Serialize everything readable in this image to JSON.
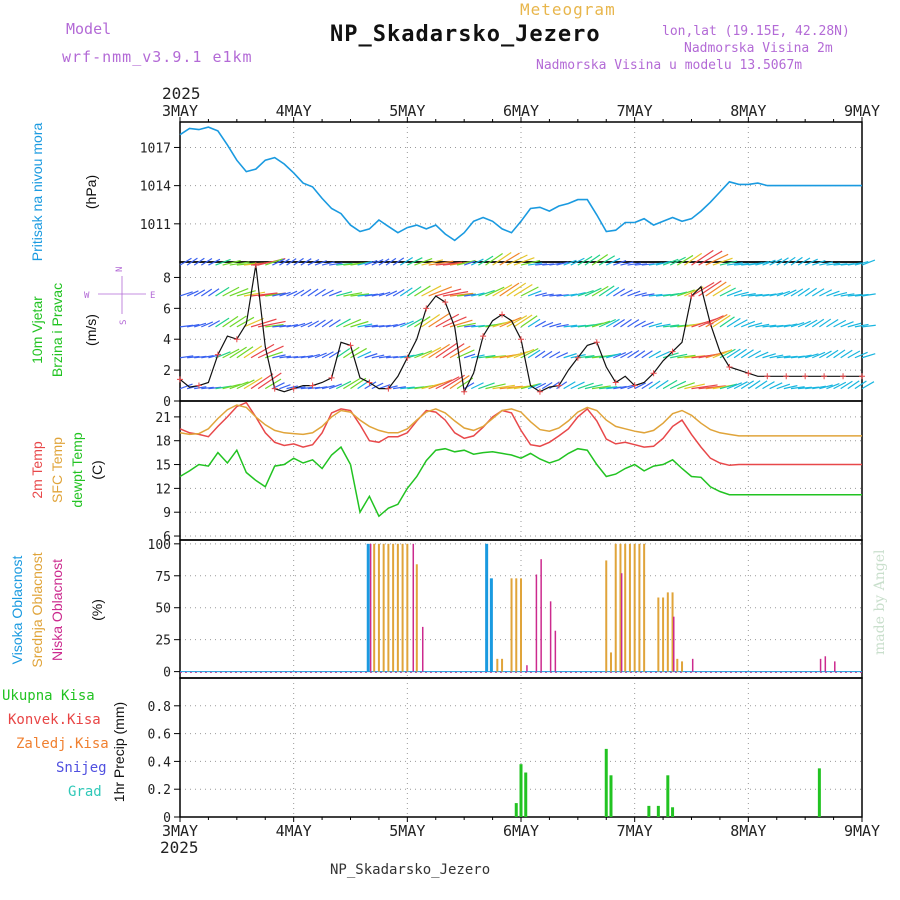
{
  "header": {
    "model_label": "Model",
    "model_name": "wrf-nmm_v3.9.1 e1km",
    "meteogram_label": "Meteogram",
    "station": "NP_Skadarsko_Jezero",
    "lonlat": "lon,lat (19.15E, 42.28N)",
    "elevation": "Nadmorska Visina 2m",
    "model_elevation": "Nadmorska Visina u modelu 13.5067m",
    "year": "2025",
    "footer_station": "NP_Skadarsko_Jezero",
    "credit": "made by Angel"
  },
  "colors": {
    "pressure": "#1a9ae0",
    "temp2m": "#e8484a",
    "sfc_temp": "#e0a43a",
    "dewpoint": "#22c322",
    "cloud_high": "#1a9ae0",
    "cloud_mid": "#e0a43a",
    "cloud_low": "#cc2a8e",
    "precip_total": "#22c322",
    "precip_conv": "#e84545",
    "precip_frozen": "#f08030",
    "snow": "#5050e0",
    "grad": "#30c8b8",
    "axis_label_purple": "#b36ad6"
  },
  "chart_data": [
    {
      "type": "line",
      "panel": "pressure",
      "ylabel_lines": [
        "Pritisak na nivou mora"
      ],
      "unit": "(hPa)",
      "x_ticks": [
        "3MAY",
        "4MAY",
        "5MAY",
        "6MAY",
        "7MAY",
        "8MAY",
        "9MAY"
      ],
      "ylim": [
        1008.0,
        1019.0
      ],
      "yticks": [
        1011,
        1014,
        1017
      ],
      "grid": true,
      "series": [
        {
          "key": "pressure",
          "x_hours": [
            0,
            2,
            4,
            6,
            8,
            10,
            12,
            14,
            16,
            18,
            20,
            22,
            24,
            26,
            28,
            30,
            32,
            34,
            36,
            38,
            40,
            42,
            44,
            46,
            48,
            50,
            52,
            54,
            56,
            58,
            60,
            62,
            64,
            66,
            68,
            70,
            72,
            74,
            76,
            78,
            80,
            82,
            84,
            86,
            88,
            90,
            92,
            94,
            96,
            98,
            100,
            102,
            104,
            106,
            108,
            110,
            112,
            114,
            116,
            118,
            120,
            122,
            124,
            126,
            128,
            130,
            132,
            134,
            136,
            138,
            140,
            142,
            144
          ],
          "values": [
            1018.0,
            1018.5,
            1018.4,
            1018.6,
            1018.3,
            1017.2,
            1016.0,
            1015.1,
            1015.3,
            1016.0,
            1016.2,
            1015.7,
            1015.0,
            1014.2,
            1013.9,
            1013.0,
            1012.2,
            1011.8,
            1010.9,
            1010.4,
            1010.6,
            1011.3,
            1010.8,
            1010.3,
            1010.7,
            1010.9,
            1010.6,
            1010.9,
            1010.2,
            1009.7,
            1010.3,
            1011.2,
            1011.5,
            1011.2,
            1010.6,
            1010.3,
            1011.2,
            1012.2,
            1012.3,
            1012.0,
            1012.4,
            1012.6,
            1012.9,
            1012.9,
            1011.7,
            1010.4,
            1010.5,
            1011.1,
            1011.1,
            1011.4,
            1010.9,
            1011.2,
            1011.5,
            1011.2,
            1011.4,
            1012.0,
            1012.7,
            1013.5,
            1014.3,
            1014.1,
            1014.1,
            1014.2,
            1014.0,
            1014.0,
            1014.0,
            1014.0,
            1014.0,
            1014.0,
            1014.0,
            1014.0,
            1014.0,
            1014.0,
            1014.0
          ]
        }
      ]
    },
    {
      "type": "line",
      "panel": "wind",
      "ylabel_lines": [
        "10m Vjetar",
        "Brzina i Pravac"
      ],
      "unit": "(m/s)",
      "compass": {
        "north": "N",
        "south": "S",
        "west": "W",
        "east": "E"
      },
      "ylim": [
        0,
        9
      ],
      "yticks": [
        0,
        2,
        4,
        6,
        8
      ],
      "grid": true,
      "barb_levels": [
        0.8,
        2.8,
        4.8,
        6.8,
        8.8
      ],
      "series": [
        {
          "key": "wind_speed",
          "x_hours": [
            0,
            2,
            4,
            6,
            8,
            10,
            12,
            14,
            16,
            18,
            20,
            22,
            24,
            26,
            28,
            30,
            32,
            34,
            36,
            38,
            40,
            42,
            44,
            46,
            48,
            50,
            52,
            54,
            56,
            58,
            60,
            62,
            64,
            66,
            68,
            70,
            72,
            74,
            76,
            78,
            80,
            82,
            84,
            86,
            88,
            90,
            92,
            94,
            96,
            98,
            100,
            102,
            104,
            106,
            108,
            110,
            112,
            114,
            116,
            118,
            120,
            122,
            124,
            126,
            128,
            130,
            132,
            134,
            136,
            138,
            140,
            142,
            144
          ],
          "values": [
            1.4,
            0.9,
            1.0,
            1.2,
            3.0,
            4.2,
            4.0,
            5.0,
            8.8,
            3.5,
            0.8,
            0.6,
            0.8,
            1.0,
            1.0,
            1.2,
            1.5,
            3.8,
            3.6,
            1.5,
            1.2,
            0.8,
            0.8,
            1.6,
            2.8,
            4.0,
            6.0,
            6.8,
            6.4,
            4.8,
            0.6,
            1.8,
            4.2,
            5.2,
            5.6,
            5.2,
            4.0,
            1.0,
            0.6,
            0.9,
            1.0,
            2.0,
            2.8,
            3.6,
            3.8,
            2.2,
            1.2,
            1.6,
            1.0,
            1.2,
            1.8,
            2.6,
            3.2,
            3.8,
            6.8,
            7.4,
            5.0,
            3.2,
            2.2,
            2.0,
            1.8,
            1.6,
            1.6,
            1.6,
            1.6,
            1.6,
            1.6,
            1.6,
            1.6,
            1.6,
            1.6,
            1.6,
            1.6
          ]
        }
      ]
    },
    {
      "type": "line",
      "panel": "temperature",
      "ylabel_lines": [
        "2m Temp",
        "SFC Temp",
        "dewpt Temp"
      ],
      "unit": "(C)",
      "ylim": [
        5.5,
        23.0
      ],
      "yticks": [
        6,
        9,
        12,
        15,
        18,
        21
      ],
      "grid": true,
      "series": [
        {
          "key": "temp2m",
          "name": "2m Temp",
          "x_hours": [
            0,
            2,
            4,
            6,
            8,
            10,
            12,
            14,
            16,
            18,
            20,
            22,
            24,
            26,
            28,
            30,
            32,
            34,
            36,
            38,
            40,
            42,
            44,
            46,
            48,
            50,
            52,
            54,
            56,
            58,
            60,
            62,
            64,
            66,
            68,
            70,
            72,
            74,
            76,
            78,
            80,
            82,
            84,
            86,
            88,
            90,
            92,
            94,
            96,
            98,
            100,
            102,
            104,
            106,
            108,
            110,
            112,
            114,
            116,
            118,
            120,
            122,
            124,
            126,
            128,
            130,
            132,
            134,
            136,
            138,
            140,
            142,
            144
          ],
          "values": [
            19.5,
            19.0,
            18.8,
            18.5,
            19.8,
            21.0,
            22.3,
            22.8,
            21.0,
            19.0,
            17.8,
            17.4,
            17.6,
            17.2,
            17.5,
            19.0,
            21.5,
            22.0,
            21.8,
            20.0,
            18.0,
            17.8,
            18.5,
            18.5,
            19.0,
            20.5,
            21.8,
            21.6,
            20.6,
            19.0,
            18.3,
            18.6,
            19.7,
            21.0,
            21.8,
            21.5,
            19.3,
            17.5,
            17.3,
            17.8,
            18.6,
            19.5,
            21.0,
            22.0,
            20.5,
            18.2,
            17.6,
            17.8,
            17.5,
            17.2,
            17.3,
            18.3,
            19.8,
            20.6,
            18.8,
            17.2,
            15.8,
            15.2,
            14.9,
            15.0,
            15.0,
            15.0,
            15.0,
            15.0,
            15.0,
            15.0,
            15.0,
            15.0,
            15.0,
            15.0,
            15.0,
            15.0,
            15.0
          ]
        },
        {
          "key": "sfc_temp",
          "name": "SFC Temp",
          "x_hours": [
            0,
            2,
            4,
            6,
            8,
            10,
            12,
            14,
            16,
            18,
            20,
            22,
            24,
            26,
            28,
            30,
            32,
            34,
            36,
            38,
            40,
            42,
            44,
            46,
            48,
            50,
            52,
            54,
            56,
            58,
            60,
            62,
            64,
            66,
            68,
            70,
            72,
            74,
            76,
            78,
            80,
            82,
            84,
            86,
            88,
            90,
            92,
            94,
            96,
            98,
            100,
            102,
            104,
            106,
            108,
            110,
            112,
            114,
            116,
            118,
            120,
            122,
            124,
            126,
            128,
            130,
            132,
            134,
            136,
            138,
            140,
            142,
            144
          ],
          "values": [
            19.0,
            18.8,
            18.9,
            19.5,
            20.8,
            21.9,
            22.5,
            22.2,
            21.0,
            20.0,
            19.3,
            19.0,
            18.9,
            18.8,
            19.0,
            19.8,
            21.0,
            21.8,
            21.6,
            20.6,
            19.8,
            19.3,
            19.0,
            19.0,
            19.5,
            20.6,
            21.6,
            22.0,
            21.5,
            20.5,
            19.6,
            19.3,
            19.8,
            20.8,
            21.8,
            22.0,
            21.6,
            20.4,
            19.4,
            19.2,
            19.6,
            20.5,
            21.6,
            22.2,
            21.8,
            20.6,
            19.8,
            19.5,
            19.2,
            19.0,
            19.3,
            20.2,
            21.4,
            21.8,
            21.2,
            20.2,
            19.4,
            19.0,
            18.8,
            18.6,
            18.6,
            18.6,
            18.6,
            18.6,
            18.6,
            18.6,
            18.6,
            18.6,
            18.6,
            18.6,
            18.6,
            18.6,
            18.6
          ]
        },
        {
          "key": "dewpoint",
          "name": "dewpt Temp",
          "x_hours": [
            0,
            2,
            4,
            6,
            8,
            10,
            12,
            14,
            16,
            18,
            20,
            22,
            24,
            26,
            28,
            30,
            32,
            34,
            36,
            38,
            40,
            42,
            44,
            46,
            48,
            50,
            52,
            54,
            56,
            58,
            60,
            62,
            64,
            66,
            68,
            70,
            72,
            74,
            76,
            78,
            80,
            82,
            84,
            86,
            88,
            90,
            92,
            94,
            96,
            98,
            100,
            102,
            104,
            106,
            108,
            110,
            112,
            114,
            116,
            118,
            120,
            122,
            124,
            126,
            128,
            130,
            132,
            134,
            136,
            138,
            140,
            142,
            144
          ],
          "values": [
            13.5,
            14.2,
            15.0,
            14.8,
            16.5,
            15.2,
            16.8,
            14.0,
            13.0,
            12.2,
            14.8,
            15.0,
            15.8,
            15.2,
            15.6,
            14.5,
            16.2,
            17.2,
            15.0,
            9.0,
            11.0,
            8.5,
            9.5,
            10.0,
            12.0,
            13.5,
            15.5,
            16.8,
            17.0,
            16.6,
            16.8,
            16.3,
            16.5,
            16.6,
            16.4,
            16.2,
            15.8,
            16.4,
            15.7,
            15.2,
            15.6,
            16.4,
            17.0,
            16.8,
            15.0,
            13.5,
            13.8,
            14.5,
            15.0,
            14.2,
            14.8,
            15.0,
            15.6,
            14.5,
            13.5,
            13.4,
            12.2,
            11.6,
            11.2,
            11.2,
            11.2,
            11.2,
            11.2,
            11.2,
            11.2,
            11.2,
            11.2,
            11.2,
            11.2,
            11.2,
            11.2,
            11.2,
            11.2
          ]
        }
      ]
    },
    {
      "type": "bar",
      "panel": "cloud",
      "ylabel_lines": [
        "Visoka Oblacnost",
        "Srednja Oblacnost",
        "Niska Oblacnost"
      ],
      "unit": "(%)",
      "ylim": [
        -5,
        103
      ],
      "yticks": [
        0,
        25,
        50,
        75,
        100
      ],
      "grid": true,
      "series": [
        {
          "key": "cloud_high",
          "name": "Visoka Oblacnost",
          "x_hours": [
            40,
            65,
            66
          ],
          "values": [
            100,
            100,
            73
          ]
        },
        {
          "key": "cloud_mid",
          "name": "Srednja Oblacnost",
          "x_hours": [
            41,
            42,
            43,
            44,
            45,
            46,
            47,
            48,
            50,
            67,
            68,
            70,
            71,
            72,
            90,
            91,
            92,
            93,
            94,
            95,
            96,
            97,
            98,
            101,
            102,
            103,
            104,
            105,
            106
          ],
          "values": [
            100,
            100,
            100,
            100,
            100,
            100,
            100,
            100,
            84,
            10,
            10,
            73,
            73,
            73,
            87,
            15,
            100,
            100,
            100,
            100,
            100,
            100,
            100,
            58,
            58,
            62,
            62,
            10,
            8
          ]
        },
        {
          "key": "cloud_low",
          "name": "Niska Oblacnost",
          "x_hours": [
            40,
            49,
            51,
            73,
            75,
            76,
            78,
            79,
            93,
            104,
            108,
            135,
            136,
            138
          ],
          "values": [
            100,
            100,
            35,
            5,
            76,
            88,
            55,
            32,
            77,
            43,
            10,
            10,
            12,
            8
          ]
        }
      ]
    },
    {
      "type": "bar",
      "panel": "precip",
      "ylabel": "1hr Precip (mm)",
      "legend": [
        "Ukupna Kisa",
        "Konvek.Kisa",
        "Zaledj.Kisa",
        "Snijeg",
        "Grad"
      ],
      "ylim": [
        0,
        1.0
      ],
      "yticks": [
        0,
        0.2,
        0.4,
        0.6,
        0.8
      ],
      "grid": true,
      "x_ticks": [
        "3MAY",
        "4MAY",
        "5MAY",
        "6MAY",
        "7MAY",
        "8MAY",
        "9MAY"
      ],
      "series": [
        {
          "key": "precip_total",
          "name": "Ukupna Kisa",
          "x_hours": [
            71,
            72,
            73,
            90,
            91,
            99,
            101,
            103,
            104,
            135
          ],
          "values": [
            0.1,
            0.38,
            0.32,
            0.49,
            0.3,
            0.08,
            0.08,
            0.3,
            0.07,
            0.35
          ]
        }
      ]
    }
  ]
}
